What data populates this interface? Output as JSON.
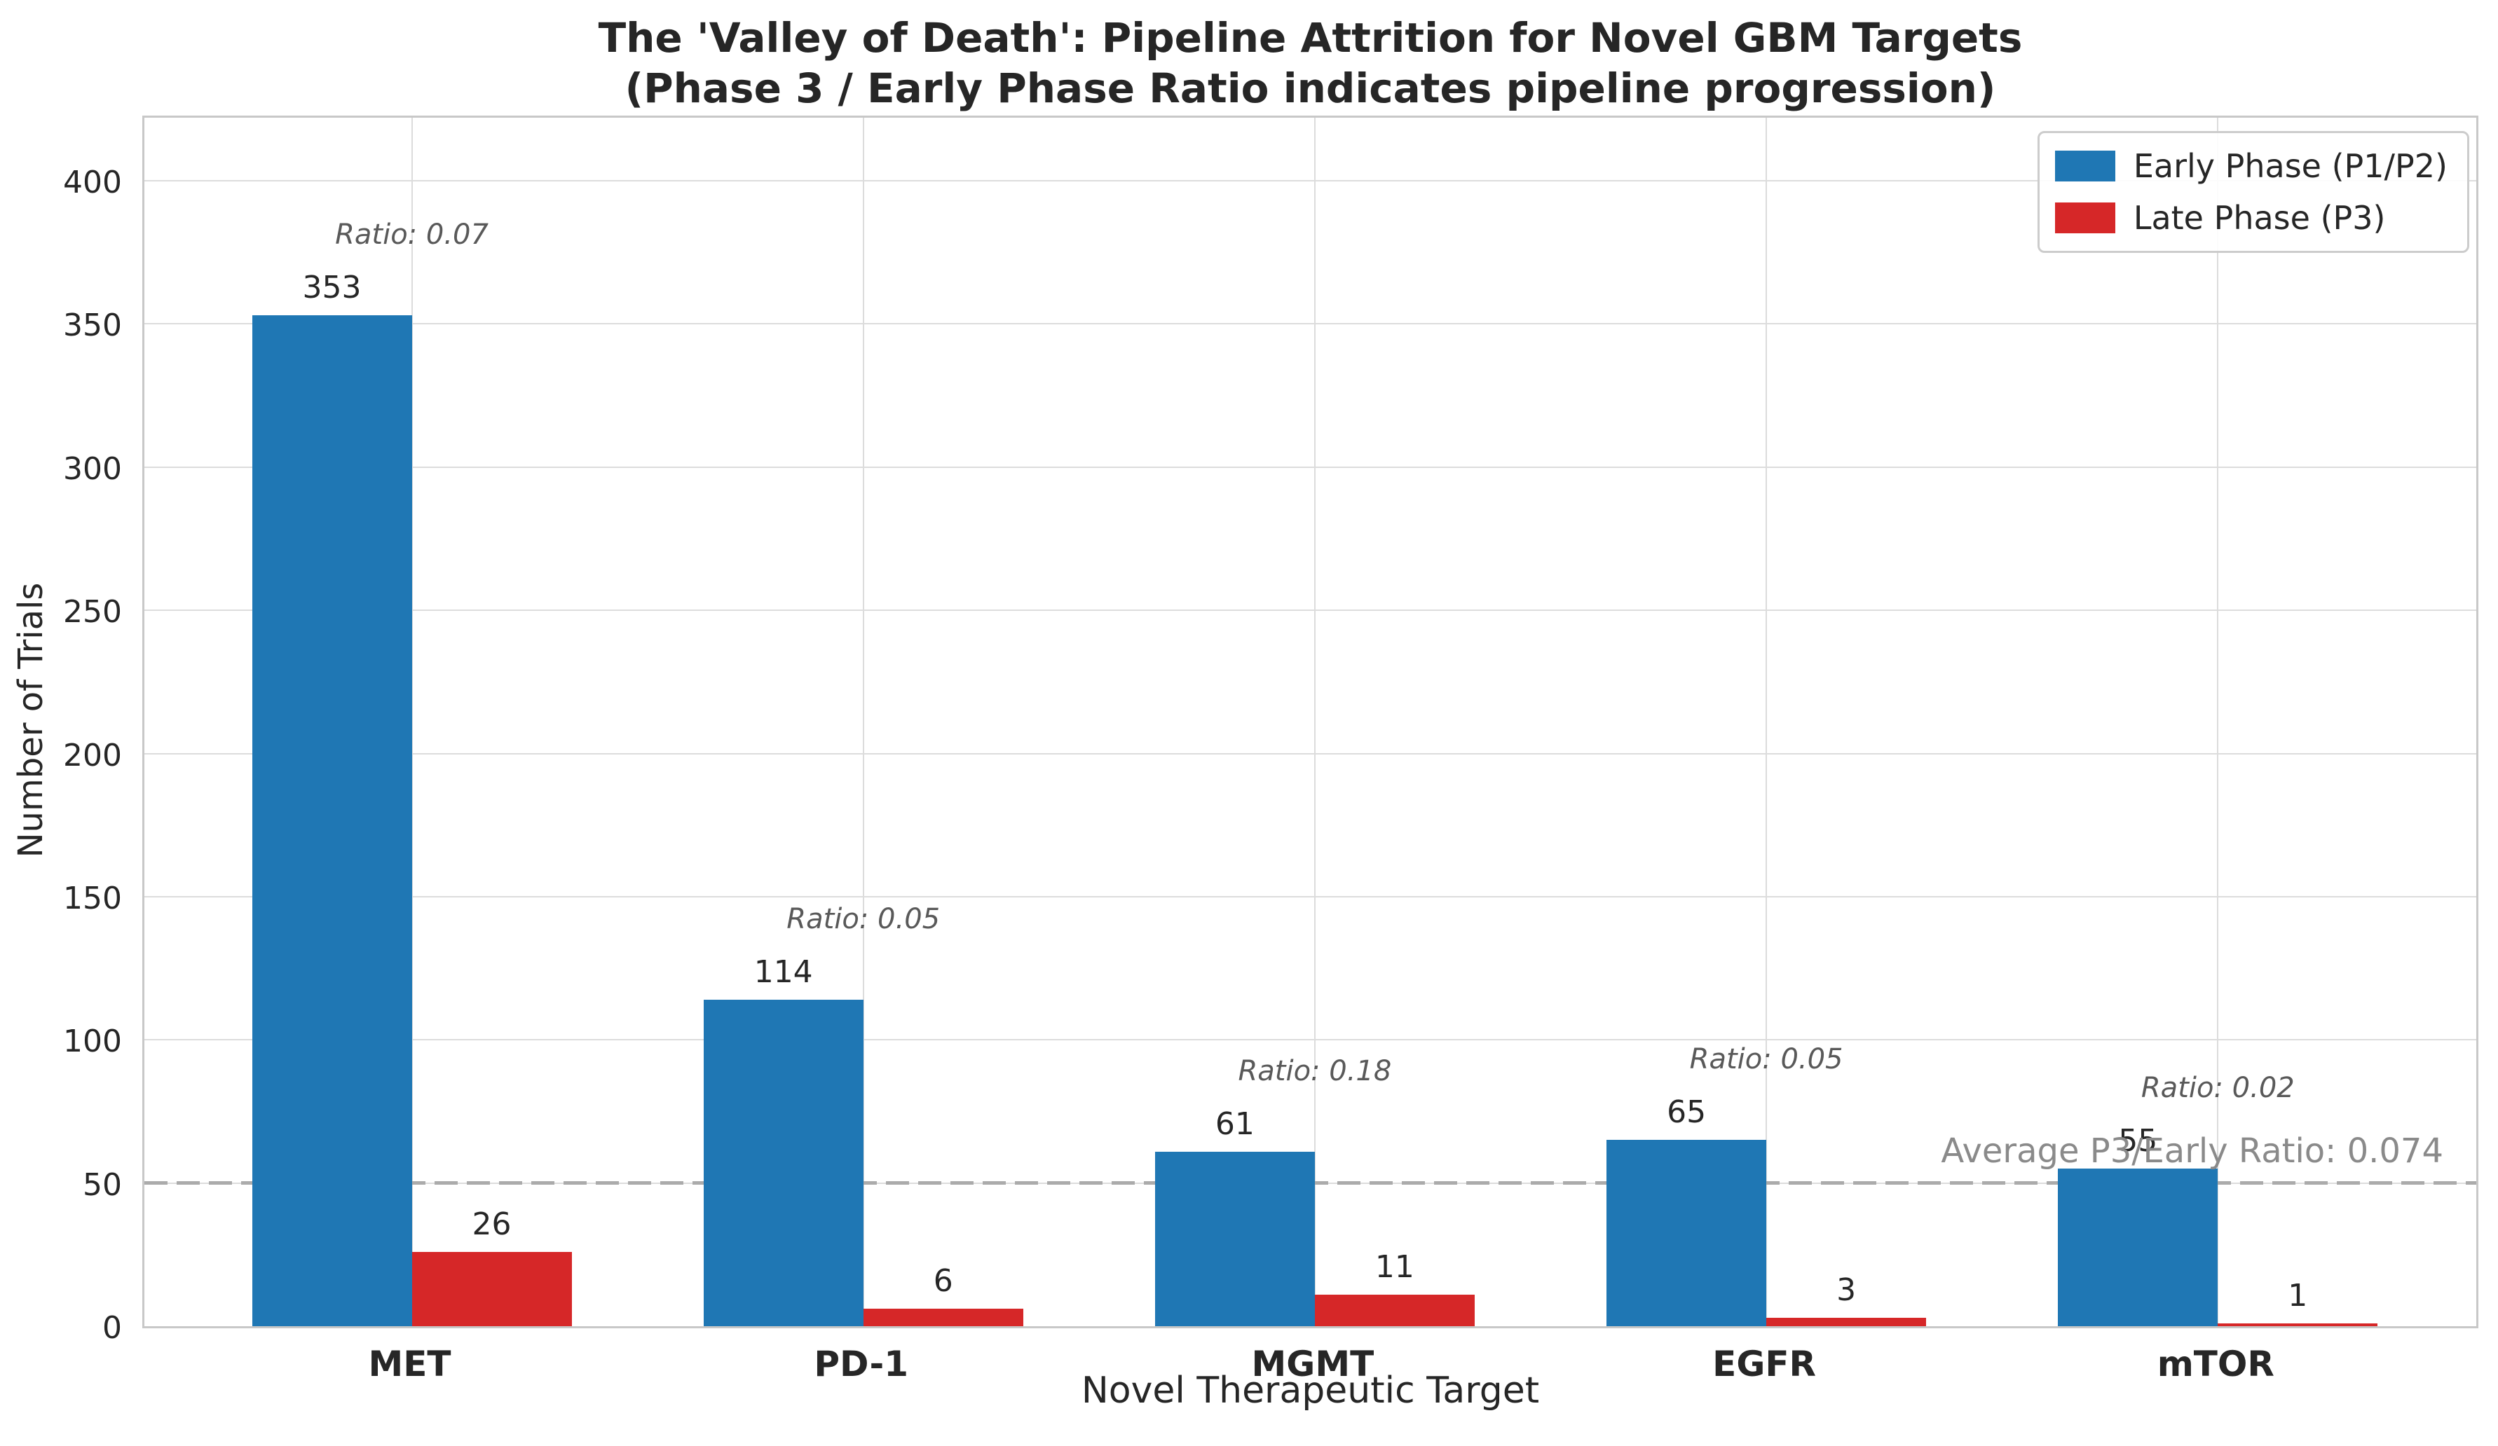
{
  "chart_data": {
    "type": "bar",
    "title_line1": "The 'Valley of Death': Pipeline Attrition for Novel GBM Targets",
    "title_line2": "(Phase 3 / Early Phase Ratio indicates pipeline progression)",
    "xlabel": "Novel Therapeutic Target",
    "ylabel": "Number of Trials",
    "categories": [
      "MET",
      "PD-1",
      "MGMT",
      "EGFR",
      "mTOR"
    ],
    "series": [
      {
        "name": "Early Phase (P1/P2)",
        "color": "#1f77b4",
        "values": [
          353,
          114,
          61,
          65,
          55
        ]
      },
      {
        "name": "Late Phase (P3)",
        "color": "#d62728",
        "values": [
          26,
          6,
          11,
          3,
          1
        ]
      }
    ],
    "ratio_annotations": [
      "Ratio: 0.07",
      "Ratio: 0.05",
      "Ratio: 0.18",
      "Ratio: 0.05",
      "Ratio: 0.02"
    ],
    "average_line": {
      "label": "Average P3/Early Ratio: 0.074",
      "y_value": 50
    },
    "yticks": [
      0,
      50,
      100,
      150,
      200,
      250,
      300,
      350,
      400
    ],
    "ylim": [
      0,
      423.5
    ],
    "grid": true,
    "legend_position": "upper right"
  }
}
